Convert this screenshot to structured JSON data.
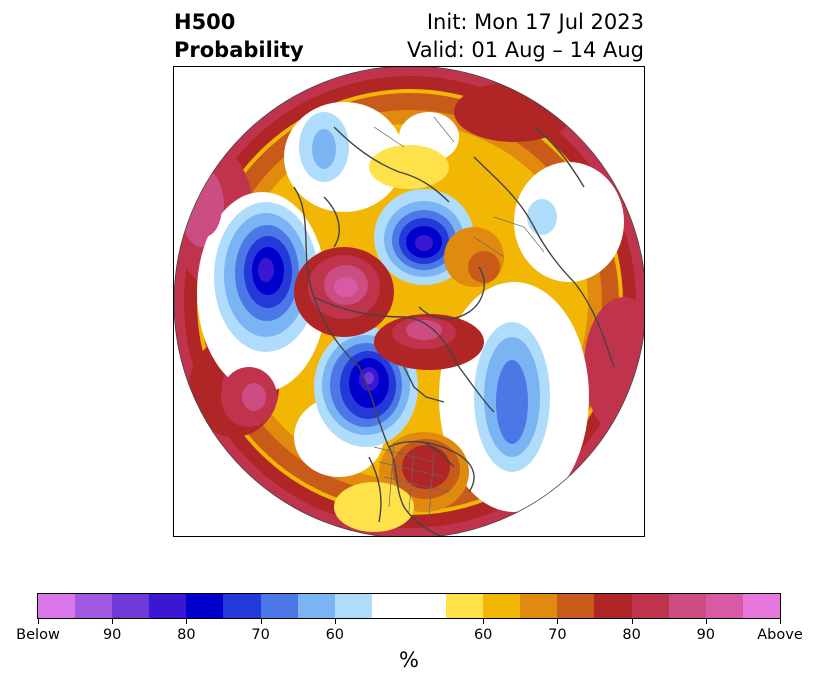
{
  "header": {
    "left_line1": "H500",
    "left_line2": "Probability",
    "right_line1": "Init: Mon 17 Jul 2023",
    "right_line2": "Valid: 01 Aug – 14 Aug"
  },
  "colorbar": {
    "units": "%",
    "segments": [
      {
        "color": "#d977e8"
      },
      {
        "color": "#a259e2"
      },
      {
        "color": "#6f3ad8"
      },
      {
        "color": "#3b17d4"
      },
      {
        "color": "#0000cd"
      },
      {
        "color": "#2339d8"
      },
      {
        "color": "#4c77e6"
      },
      {
        "color": "#7ab4f3"
      },
      {
        "color": "#b0dcfc"
      },
      {
        "color": "#ffffff"
      },
      {
        "color": "#ffe14a"
      },
      {
        "color": "#f2b705"
      },
      {
        "color": "#e08a0f"
      },
      {
        "color": "#c85a1a"
      },
      {
        "color": "#b02525"
      },
      {
        "color": "#c0334d"
      },
      {
        "color": "#cc4d82"
      },
      {
        "color": "#d95aa4"
      },
      {
        "color": "#e878de"
      }
    ],
    "ticks": [
      {
        "label": "Below"
      },
      {
        "label": "90"
      },
      {
        "label": "80"
      },
      {
        "label": "70"
      },
      {
        "label": "60"
      },
      {
        "label": "60"
      },
      {
        "label": "70"
      },
      {
        "label": "80"
      },
      {
        "label": "90"
      },
      {
        "label": "Above"
      }
    ]
  },
  "map": {
    "projection": "north-polar-stereographic",
    "region": "Northern Hemisphere",
    "anomalies": [
      {
        "sign": "below",
        "probability_pct": 90,
        "location": "Arctic Ocean north of Siberia"
      },
      {
        "sign": "below",
        "probability_pct": 90,
        "location": "Hudson Bay / central Canada"
      },
      {
        "sign": "below",
        "probability_pct": 80,
        "location": "North Pacific"
      },
      {
        "sign": "below",
        "probability_pct": 75,
        "location": "North Atlantic"
      },
      {
        "sign": "above",
        "probability_pct": 80,
        "location": "Southeastern United States"
      },
      {
        "sign": "above",
        "probability_pct": 90,
        "location": "Northern Europe / Scandinavia"
      },
      {
        "sign": "above",
        "probability_pct": 90,
        "location": "Greenland"
      },
      {
        "sign": "above",
        "probability_pct": 80,
        "location": "Central Asia / China"
      },
      {
        "sign": "above",
        "probability_pct": 70,
        "location": "Eastern Siberia"
      }
    ]
  }
}
